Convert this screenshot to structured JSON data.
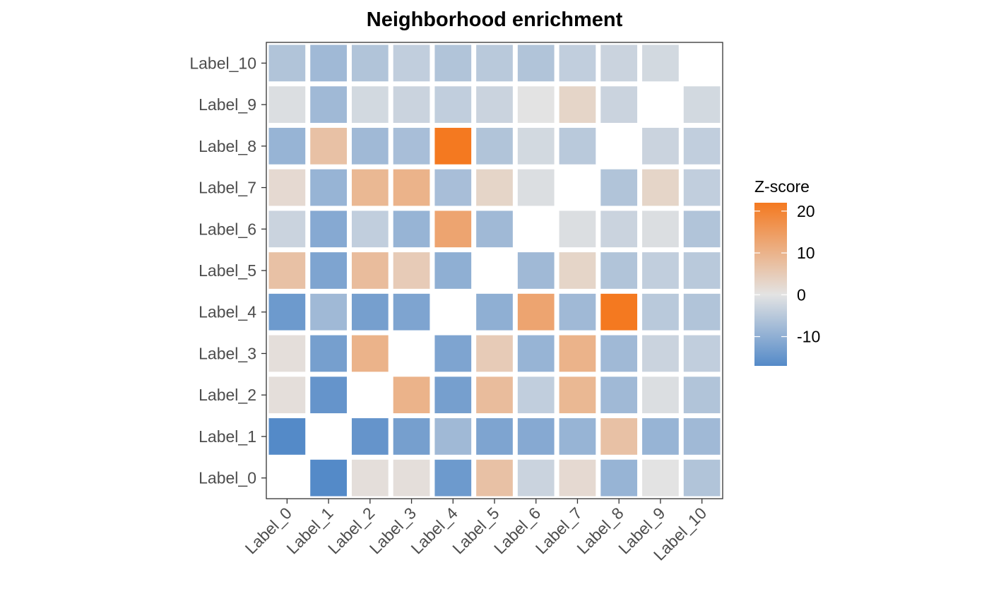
{
  "chart_data": {
    "type": "heatmap",
    "title": "Neighborhood enrichment",
    "xlabel": "",
    "ylabel": "",
    "x_categories": [
      "Label_0",
      "Label_1",
      "Label_2",
      "Label_3",
      "Label_4",
      "Label_5",
      "Label_6",
      "Label_7",
      "Label_8",
      "Label_9",
      "Label_10"
    ],
    "y_categories": [
      "Label_0",
      "Label_1",
      "Label_2",
      "Label_3",
      "Label_4",
      "Label_5",
      "Label_6",
      "Label_7",
      "Label_8",
      "Label_9",
      "Label_10"
    ],
    "values": [
      [
        null,
        -17,
        1,
        1,
        -14,
        7,
        -3,
        2,
        -9,
        0,
        -6
      ],
      [
        -17,
        null,
        -15,
        -13,
        -8,
        -12,
        -11,
        -9,
        7,
        -9,
        -8
      ],
      [
        1,
        -15,
        null,
        10,
        -13,
        8,
        -4,
        9,
        -8,
        -1,
        -6
      ],
      [
        1,
        -13,
        10,
        null,
        -12,
        5,
        -9,
        10,
        -8,
        -3,
        -4
      ],
      [
        -14,
        -8,
        -13,
        -12,
        null,
        -10,
        13,
        -8,
        22,
        -5,
        -6
      ],
      [
        7,
        -12,
        8,
        5,
        -10,
        null,
        -8,
        3,
        -6,
        -4,
        -5
      ],
      [
        -3,
        -11,
        -4,
        -9,
        13,
        -8,
        null,
        -1,
        -3,
        -1,
        -6
      ],
      [
        2,
        -9,
        9,
        10,
        -7,
        3,
        -1,
        null,
        -6,
        3,
        -4
      ],
      [
        -9,
        7,
        -8,
        -7,
        22,
        -6,
        -2,
        -5,
        null,
        -3,
        -4
      ],
      [
        -1,
        -8,
        -2,
        -3,
        -4,
        -3,
        0,
        3,
        -3,
        null,
        -2
      ],
      [
        -6,
        -8,
        -6,
        -4,
        -6,
        -5,
        -6,
        -4,
        -3,
        -2,
        null
      ]
    ],
    "legend": {
      "title": "Z-score",
      "position": "right",
      "min": -17,
      "max": 22,
      "ticks": [
        -10,
        0,
        10,
        20
      ],
      "tick_labels": [
        "-10",
        "0",
        "10",
        "20"
      ]
    },
    "colors": {
      "low": "#548ac8",
      "mid": "#e3e3e3",
      "high": "#f47920",
      "panel_border": "#333333",
      "tick_text": "#4d4d4d",
      "background": "#ffffff"
    }
  }
}
